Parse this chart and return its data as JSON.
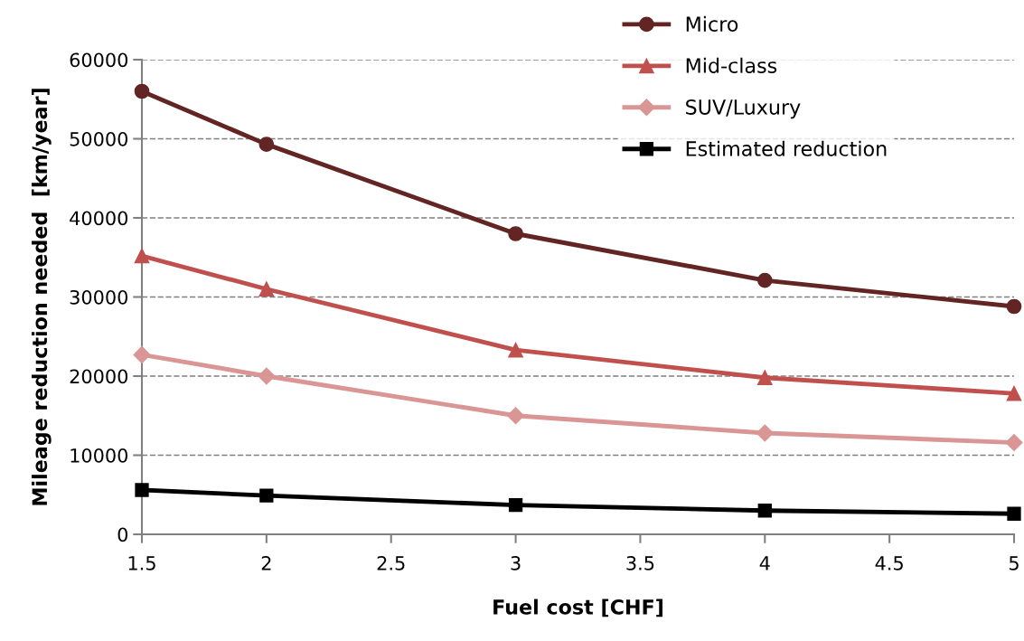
{
  "chart_data": {
    "type": "line",
    "xlabel": "Fuel cost [CHF]",
    "ylabel": "Mileage reduction needed  [km/year]",
    "xlim": [
      1.5,
      5
    ],
    "xticks": [
      1.5,
      2,
      2.5,
      3,
      3.5,
      4,
      4.5,
      5
    ],
    "ylim": [
      0,
      60000
    ],
    "yticks": [
      0,
      10000,
      20000,
      30000,
      40000,
      50000,
      60000
    ],
    "grid": "y",
    "legend": "top right",
    "line_style": "solid",
    "series": [
      {
        "name": "Micro",
        "color": "#632523",
        "marker": "circle",
        "x": [
          1.5,
          2,
          3,
          4,
          5
        ],
        "values": [
          56000,
          49300,
          38000,
          32100,
          28800
        ]
      },
      {
        "name": "Mid-class",
        "color": "#c0504d",
        "marker": "triangle",
        "x": [
          1.5,
          2,
          3,
          4,
          5
        ],
        "values": [
          35200,
          31000,
          23300,
          19800,
          17800
        ]
      },
      {
        "name": "SUV/Luxury",
        "color": "#d99694",
        "marker": "diamond",
        "x": [
          1.5,
          2,
          3,
          4,
          5
        ],
        "values": [
          22700,
          20000,
          15000,
          12800,
          11600
        ]
      },
      {
        "name": "Estimated reduction",
        "color": "#000000",
        "marker": "square",
        "x": [
          1.5,
          2,
          3,
          4,
          5
        ],
        "values": [
          5600,
          4900,
          3700,
          3000,
          2600
        ]
      }
    ]
  }
}
